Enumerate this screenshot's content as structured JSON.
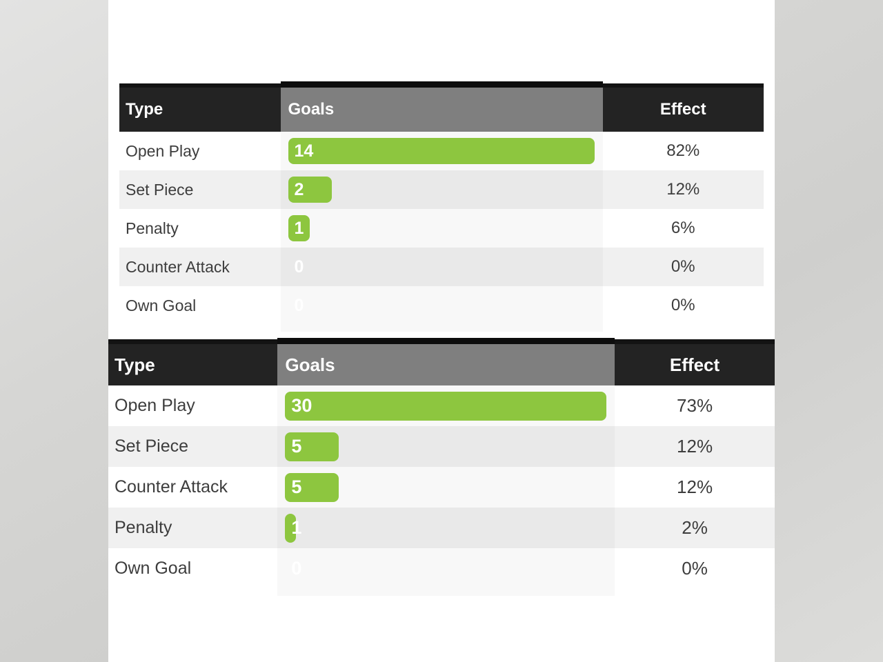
{
  "colors": {
    "accent_green": "#8dc63f",
    "header_bg": "#232323",
    "highlighted_column_header_bg": "#7f7f7f",
    "row_alt_bg": "#f0f0f0",
    "header_text": "#ffffff",
    "body_text": "#3d3d3d",
    "panel_bg": "#ffffff",
    "page_bg": "#d6d6d4"
  },
  "chart_data": [
    {
      "type": "table",
      "columns": [
        "Type",
        "Goals",
        "Effect"
      ],
      "highlighted_column": "Goals",
      "max_goals": 14,
      "rows": [
        {
          "type": "Open Play",
          "goals": 14,
          "effect": "82%"
        },
        {
          "type": "Set Piece",
          "goals": 2,
          "effect": "12%"
        },
        {
          "type": "Penalty",
          "goals": 1,
          "effect": "6%"
        },
        {
          "type": "Counter Attack",
          "goals": 0,
          "effect": "0%"
        },
        {
          "type": "Own Goal",
          "goals": 0,
          "effect": "0%"
        }
      ]
    },
    {
      "type": "table",
      "columns": [
        "Type",
        "Goals",
        "Effect"
      ],
      "highlighted_column": "Goals",
      "max_goals": 30,
      "rows": [
        {
          "type": "Open Play",
          "goals": 30,
          "effect": "73%"
        },
        {
          "type": "Set Piece",
          "goals": 5,
          "effect": "12%"
        },
        {
          "type": "Counter Attack",
          "goals": 5,
          "effect": "12%"
        },
        {
          "type": "Penalty",
          "goals": 1,
          "effect": "2%"
        },
        {
          "type": "Own Goal",
          "goals": 0,
          "effect": "0%"
        }
      ]
    }
  ]
}
